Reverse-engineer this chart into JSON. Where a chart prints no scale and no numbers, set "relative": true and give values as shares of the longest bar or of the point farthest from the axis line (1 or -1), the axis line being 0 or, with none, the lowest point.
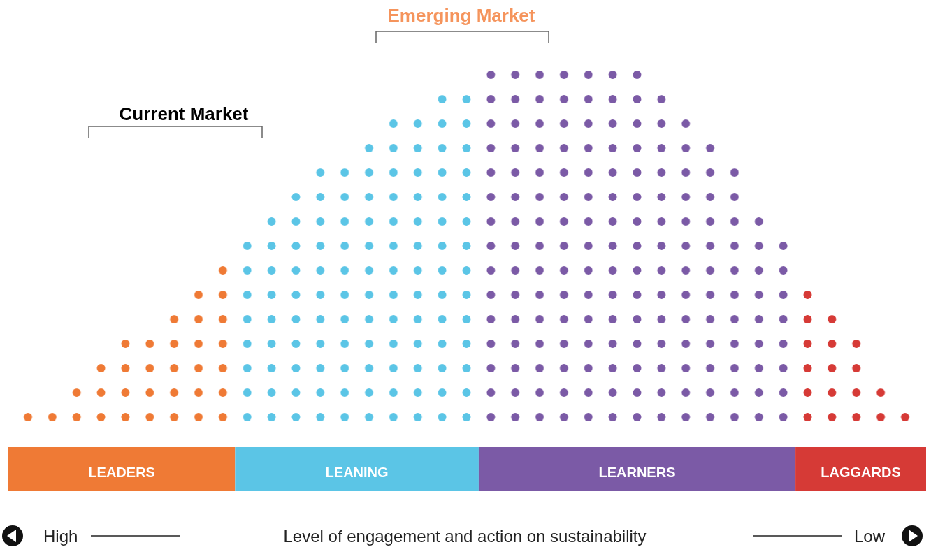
{
  "chart_data": {
    "type": "bar",
    "relative": true,
    "annotations": [
      "Emerging Market",
      "Current Market",
      "High",
      "Low",
      "LEADERS",
      "LEANING",
      "LEARNERS",
      "LAGGARDS",
      "Level of engagement and action on sustainability"
    ],
    "categories": [
      null,
      null,
      null,
      null,
      null,
      null,
      null,
      null,
      null,
      null,
      null,
      null,
      null,
      null,
      null,
      null,
      null,
      null,
      null,
      null,
      null,
      null,
      null,
      null,
      null,
      null,
      null,
      null,
      null,
      null,
      null,
      null,
      null,
      null,
      null,
      null,
      null
    ],
    "values": [
      0.067,
      0.067,
      0.133,
      0.2,
      0.267,
      0.267,
      0.333,
      0.4,
      0.467,
      0.533,
      0.6,
      0.667,
      0.733,
      0.733,
      0.8,
      0.867,
      0.867,
      0.933,
      0.933,
      1,
      1,
      1,
      1,
      1,
      1,
      1,
      0.933,
      0.867,
      0.8,
      0.733,
      0.6,
      0.533,
      0.4,
      0.333,
      0.267,
      0.133,
      0.067
    ],
    "colors": [
      "#ef7a35",
      "#ef7a35",
      "#ef7a35",
      "#ef7a35",
      "#ef7a35",
      "#ef7a35",
      "#ef7a35",
      "#ef7a35",
      "#ef7a35",
      "#5bc5e6",
      "#5bc5e6",
      "#5bc5e6",
      "#5bc5e6",
      "#5bc5e6",
      "#5bc5e6",
      "#5bc5e6",
      "#5bc5e6",
      "#5bc5e6",
      "#5bc5e6",
      "#7b5aa6",
      "#7b5aa6",
      "#7b5aa6",
      "#7b5aa6",
      "#7b5aa6",
      "#7b5aa6",
      "#7b5aa6",
      "#7b5aa6",
      "#7b5aa6",
      "#7b5aa6",
      "#7b5aa6",
      "#7b5aa6",
      "#7b5aa6",
      "#d63a36",
      "#d63a36",
      "#d63a36",
      "#d63a36",
      "#d63a36"
    ]
  }
}
